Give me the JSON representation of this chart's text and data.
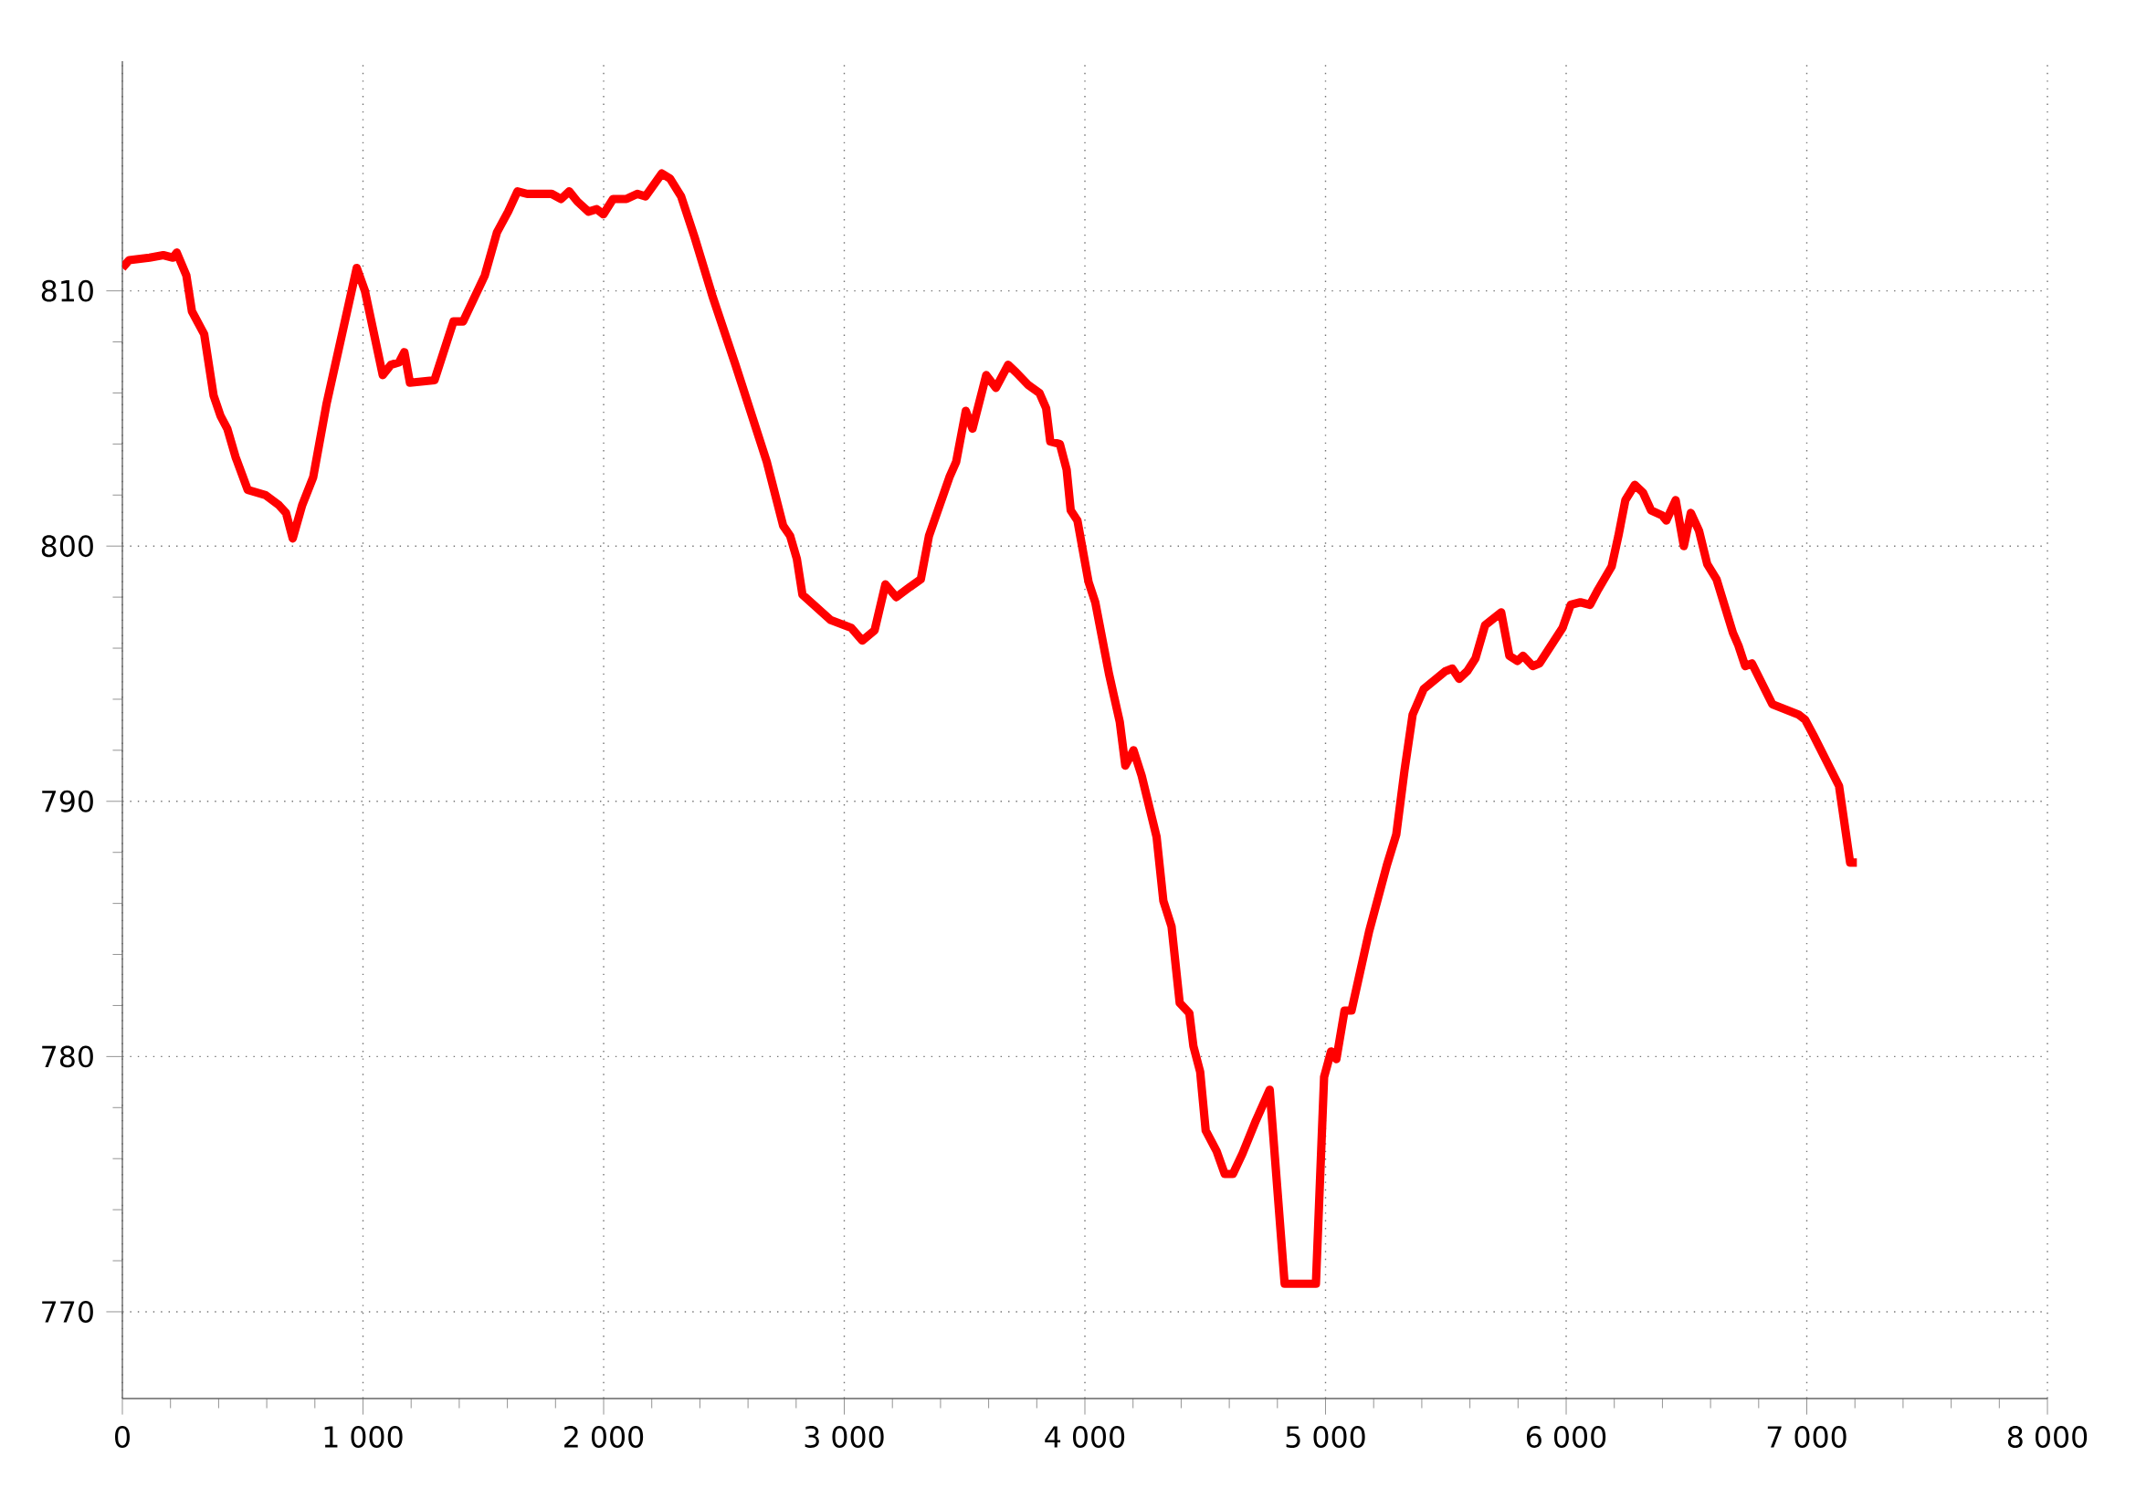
{
  "chart_data": {
    "type": "line",
    "color": "#ff0000",
    "grid": true,
    "marker": "none",
    "line_style": "solid",
    "xlim": [
      0,
      8000
    ],
    "ylim": [
      766.6,
      819
    ],
    "xticks": [
      0,
      {
        "value": 1000,
        "label": "1 000"
      },
      {
        "value": 2000,
        "label": "2 000"
      },
      {
        "value": 3000,
        "label": "3 000"
      },
      {
        "value": 4000,
        "label": "4 000"
      },
      {
        "value": 5000,
        "label": "5 000"
      },
      {
        "value": 6000,
        "label": "6 000"
      },
      {
        "value": 7000,
        "label": "7 000"
      },
      {
        "value": 8000,
        "label": "8 000"
      }
    ],
    "yticks": [
      770,
      780,
      790,
      800,
      810
    ],
    "x": [
      0,
      28,
      113,
      170,
      210,
      226,
      266,
      289,
      340,
      379,
      408,
      436,
      470,
      521,
      595,
      651,
      680,
      708,
      747,
      793,
      849,
      974,
      1008,
      1082,
      1116,
      1150,
      1172,
      1195,
      1297,
      1376,
      1416,
      1506,
      1557,
      1603,
      1642,
      1682,
      1784,
      1823,
      1857,
      1891,
      1937,
      1971,
      1999,
      2039,
      2095,
      2140,
      2174,
      2242,
      2276,
      2322,
      2378,
      2452,
      2548,
      2678,
      2746,
      2775,
      2803,
      2826,
      2944,
      3029,
      3075,
      3126,
      3171,
      3216,
      3273,
      3318,
      3352,
      3437,
      3465,
      3505,
      3533,
      3590,
      3630,
      3681,
      3715,
      3766,
      3811,
      3839,
      3856,
      3896,
      3924,
      3941,
      3969,
      4015,
      4043,
      4100,
      4145,
      4168,
      4202,
      4236,
      4298,
      4326,
      4360,
      4394,
      4434,
      4451,
      4479,
      4502,
      4547,
      4581,
      4615,
      4655,
      4711,
      4768,
      4830,
      4960,
      4994,
      5023,
      5045,
      5079,
      5108,
      5181,
      5255,
      5294,
      5328,
      5362,
      5408,
      5498,
      5527,
      5555,
      5589,
      5623,
      5663,
      5730,
      5764,
      5798,
      5821,
      5861,
      5889,
      5985,
      6019,
      6059,
      6099,
      6133,
      6189,
      6217,
      6246,
      6285,
      6319,
      6353,
      6399,
      6416,
      6455,
      6489,
      6518,
      6552,
      6586,
      6625,
      6693,
      6716,
      6744,
      6772,
      6857,
      6965,
      6993,
      7027,
      7134,
      7180,
      7208
    ],
    "values": [
      810.9,
      811.2,
      811.3,
      811.4,
      811.3,
      811.5,
      810.6,
      809.2,
      808.3,
      805.9,
      805.1,
      804.6,
      803.5,
      802.2,
      802.0,
      801.6,
      801.3,
      800.3,
      801.6,
      802.7,
      805.6,
      810.9,
      810.0,
      806.7,
      807.1,
      807.2,
      807.6,
      806.4,
      806.5,
      808.8,
      808.8,
      810.6,
      812.3,
      813.1,
      813.9,
      813.8,
      813.8,
      813.6,
      813.9,
      813.5,
      813.1,
      813.2,
      813.0,
      813.6,
      813.6,
      813.8,
      813.7,
      814.6,
      814.4,
      813.7,
      812.1,
      809.8,
      807.1,
      803.3,
      800.8,
      800.4,
      799.5,
      798.1,
      797.1,
      796.8,
      796.3,
      796.7,
      798.5,
      798.0,
      798.4,
      798.7,
      800.4,
      802.7,
      803.3,
      805.3,
      804.6,
      806.7,
      806.2,
      807.1,
      806.8,
      806.3,
      806.0,
      805.4,
      804.1,
      804.0,
      803.0,
      801.4,
      801.0,
      798.6,
      797.8,
      795.0,
      793.1,
      791.4,
      792.0,
      791.0,
      788.6,
      786.1,
      785.1,
      782.1,
      781.7,
      780.4,
      779.4,
      777.1,
      776.3,
      775.4,
      775.4,
      776.2,
      777.5,
      778.7,
      771.1,
      771.1,
      779.2,
      780.2,
      779.9,
      781.8,
      781.8,
      784.9,
      787.5,
      788.7,
      791.2,
      793.4,
      794.4,
      795.1,
      795.2,
      794.8,
      795.1,
      795.6,
      796.9,
      797.4,
      795.7,
      795.5,
      795.7,
      795.3,
      795.4,
      796.8,
      797.7,
      797.8,
      797.7,
      798.3,
      799.2,
      800.4,
      801.8,
      802.4,
      802.1,
      801.4,
      801.2,
      801.0,
      801.8,
      800.0,
      801.3,
      800.6,
      799.3,
      798.7,
      796.6,
      796.1,
      795.3,
      795.4,
      793.8,
      793.4,
      793.2,
      792.6,
      790.6,
      787.6,
      787.6
    ]
  }
}
